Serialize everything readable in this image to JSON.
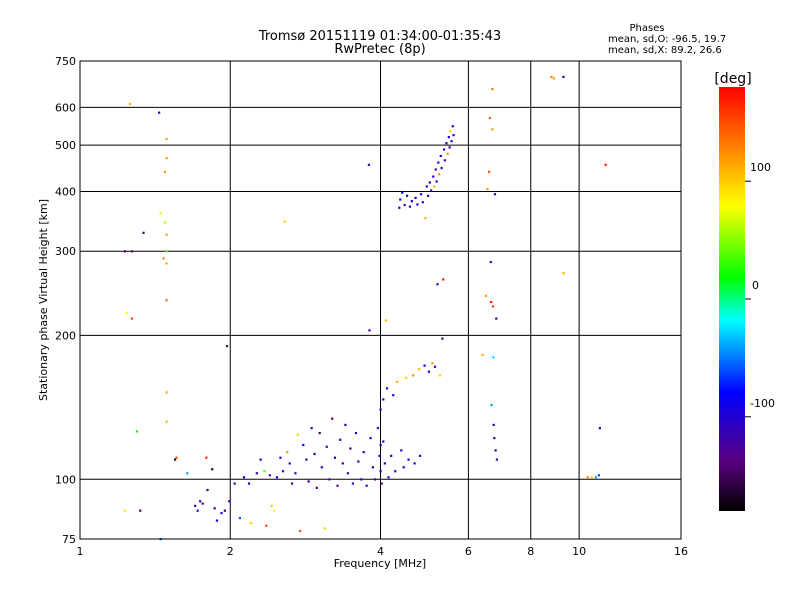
{
  "chart_data": {
    "type": "scatter",
    "title": "Tromsø 20151119 01:34:00-01:35:43",
    "subtitle": "RwPretec (8p)",
    "xlabel": "Frequency [MHz]",
    "ylabel": "Stationary phase Virtual Height [km]",
    "x_scale": "log",
    "y_scale": "log",
    "xlim": [
      1,
      16
    ],
    "ylim": [
      75,
      750
    ],
    "x_ticks": [
      1,
      2,
      4,
      6,
      8,
      10,
      16
    ],
    "y_ticks": [
      75,
      100,
      200,
      300,
      400,
      500,
      600,
      750
    ],
    "grid": true,
    "phase_header": "Phases",
    "phase_stats": [
      "mean, sd,O: -96.5, 19.7",
      "mean, sd,X: 89.2, 26.6"
    ],
    "colorbar": {
      "label": "[deg]",
      "range": [
        -180,
        180
      ],
      "ticks": [
        100,
        0,
        -100
      ],
      "colors": [
        "#000000",
        "#5a0080",
        "#0000ff",
        "#00ffff",
        "#00ff00",
        "#ffff00",
        "#ff8000",
        "#ff0000"
      ]
    },
    "points": [
      {
        "x": 1.26,
        "y": 610,
        "phase": 110
      },
      {
        "x": 1.44,
        "y": 585,
        "phase": -110
      },
      {
        "x": 1.49,
        "y": 515,
        "phase": 120
      },
      {
        "x": 1.49,
        "y": 470,
        "phase": 115
      },
      {
        "x": 1.48,
        "y": 440,
        "phase": 118
      },
      {
        "x": 1.45,
        "y": 360,
        "phase": 70
      },
      {
        "x": 1.48,
        "y": 345,
        "phase": 60
      },
      {
        "x": 1.34,
        "y": 328,
        "phase": -150
      },
      {
        "x": 1.49,
        "y": 325,
        "phase": 120
      },
      {
        "x": 1.49,
        "y": 300,
        "phase": 40
      },
      {
        "x": 1.47,
        "y": 290,
        "phase": 130
      },
      {
        "x": 1.49,
        "y": 283,
        "phase": 115
      },
      {
        "x": 1.23,
        "y": 300,
        "phase": -140
      },
      {
        "x": 1.27,
        "y": 300,
        "phase": -140
      },
      {
        "x": 1.49,
        "y": 237,
        "phase": 140
      },
      {
        "x": 1.24,
        "y": 223,
        "phase": 80
      },
      {
        "x": 1.27,
        "y": 217,
        "phase": 150
      },
      {
        "x": 1.49,
        "y": 152,
        "phase": 115
      },
      {
        "x": 1.49,
        "y": 132,
        "phase": 105
      },
      {
        "x": 1.3,
        "y": 126,
        "phase": 20
      },
      {
        "x": 1.55,
        "y": 110,
        "phase": -170
      },
      {
        "x": 1.56,
        "y": 111,
        "phase": 150
      },
      {
        "x": 1.64,
        "y": 103,
        "phase": -40
      },
      {
        "x": 1.23,
        "y": 86,
        "phase": 90
      },
      {
        "x": 1.32,
        "y": 86,
        "phase": -150
      },
      {
        "x": 1.45,
        "y": 75,
        "phase": -60
      },
      {
        "x": 1.79,
        "y": 111,
        "phase": 165
      },
      {
        "x": 1.84,
        "y": 105,
        "phase": -170
      },
      {
        "x": 1.97,
        "y": 190,
        "phase": -110
      },
      {
        "x": 1.7,
        "y": 88,
        "phase": -120
      },
      {
        "x": 1.72,
        "y": 86,
        "phase": -100
      },
      {
        "x": 1.74,
        "y": 90,
        "phase": -130
      },
      {
        "x": 1.76,
        "y": 89,
        "phase": -110
      },
      {
        "x": 1.8,
        "y": 95,
        "phase": -100
      },
      {
        "x": 1.86,
        "y": 87,
        "phase": -120
      },
      {
        "x": 1.88,
        "y": 82,
        "phase": -90
      },
      {
        "x": 1.92,
        "y": 85,
        "phase": -110
      },
      {
        "x": 1.95,
        "y": 86,
        "phase": -150
      },
      {
        "x": 1.99,
        "y": 90,
        "phase": -100
      },
      {
        "x": 2.04,
        "y": 98,
        "phase": -110
      },
      {
        "x": 2.09,
        "y": 83,
        "phase": -60
      },
      {
        "x": 2.13,
        "y": 101,
        "phase": -110
      },
      {
        "x": 2.18,
        "y": 98,
        "phase": -100
      },
      {
        "x": 2.2,
        "y": 81,
        "phase": 100
      },
      {
        "x": 2.26,
        "y": 103,
        "phase": -110
      },
      {
        "x": 2.3,
        "y": 110,
        "phase": -110
      },
      {
        "x": 2.34,
        "y": 104,
        "phase": 40
      },
      {
        "x": 2.36,
        "y": 80,
        "phase": 150
      },
      {
        "x": 2.4,
        "y": 102,
        "phase": -120
      },
      {
        "x": 2.42,
        "y": 88,
        "phase": 100
      },
      {
        "x": 2.45,
        "y": 86,
        "phase": 80
      },
      {
        "x": 2.48,
        "y": 101,
        "phase": -90
      },
      {
        "x": 2.52,
        "y": 111,
        "phase": -110
      },
      {
        "x": 2.55,
        "y": 104,
        "phase": -130
      },
      {
        "x": 2.57,
        "y": 346,
        "phase": 100
      },
      {
        "x": 2.6,
        "y": 114,
        "phase": 120
      },
      {
        "x": 2.63,
        "y": 108,
        "phase": -100
      },
      {
        "x": 2.66,
        "y": 98,
        "phase": -120
      },
      {
        "x": 2.7,
        "y": 103,
        "phase": -110
      },
      {
        "x": 2.73,
        "y": 124,
        "phase": 100
      },
      {
        "x": 2.76,
        "y": 78,
        "phase": 150
      },
      {
        "x": 2.8,
        "y": 118,
        "phase": -100
      },
      {
        "x": 2.84,
        "y": 110,
        "phase": -110
      },
      {
        "x": 2.87,
        "y": 99,
        "phase": -120
      },
      {
        "x": 2.91,
        "y": 128,
        "phase": -110
      },
      {
        "x": 2.95,
        "y": 113,
        "phase": -100
      },
      {
        "x": 2.98,
        "y": 96,
        "phase": -140
      },
      {
        "x": 3.02,
        "y": 125,
        "phase": -150
      },
      {
        "x": 3.05,
        "y": 106,
        "phase": -110
      },
      {
        "x": 3.09,
        "y": 79,
        "phase": 100
      },
      {
        "x": 3.12,
        "y": 117,
        "phase": -110
      },
      {
        "x": 3.16,
        "y": 100,
        "phase": -120
      },
      {
        "x": 3.2,
        "y": 134,
        "phase": -150
      },
      {
        "x": 3.24,
        "y": 111,
        "phase": -100
      },
      {
        "x": 3.28,
        "y": 97,
        "phase": -130
      },
      {
        "x": 3.32,
        "y": 121,
        "phase": -110
      },
      {
        "x": 3.36,
        "y": 108,
        "phase": -100
      },
      {
        "x": 3.4,
        "y": 130,
        "phase": -120
      },
      {
        "x": 3.44,
        "y": 103,
        "phase": -110
      },
      {
        "x": 3.48,
        "y": 116,
        "phase": -150
      },
      {
        "x": 3.52,
        "y": 98,
        "phase": -110
      },
      {
        "x": 3.57,
        "y": 125,
        "phase": -100
      },
      {
        "x": 3.61,
        "y": 109,
        "phase": -130
      },
      {
        "x": 3.66,
        "y": 100,
        "phase": -110
      },
      {
        "x": 3.7,
        "y": 114,
        "phase": -100
      },
      {
        "x": 3.75,
        "y": 97,
        "phase": -110
      },
      {
        "x": 3.79,
        "y": 455,
        "phase": -110
      },
      {
        "x": 3.8,
        "y": 205,
        "phase": -120
      },
      {
        "x": 3.82,
        "y": 122,
        "phase": -110
      },
      {
        "x": 3.86,
        "y": 106,
        "phase": -100
      },
      {
        "x": 3.9,
        "y": 100,
        "phase": -120
      },
      {
        "x": 3.95,
        "y": 128,
        "phase": -110
      },
      {
        "x": 3.98,
        "y": 112,
        "phase": -100
      },
      {
        "x": 4.0,
        "y": 140,
        "phase": -110
      },
      {
        "x": 4.0,
        "y": 118,
        "phase": -110
      },
      {
        "x": 4.0,
        "y": 104,
        "phase": -110
      },
      {
        "x": 4.02,
        "y": 98,
        "phase": -130
      },
      {
        "x": 4.05,
        "y": 147,
        "phase": -110
      },
      {
        "x": 4.05,
        "y": 120,
        "phase": -100
      },
      {
        "x": 4.08,
        "y": 108,
        "phase": -110
      },
      {
        "x": 4.1,
        "y": 215,
        "phase": 110
      },
      {
        "x": 4.12,
        "y": 155,
        "phase": -110
      },
      {
        "x": 4.15,
        "y": 101,
        "phase": -100
      },
      {
        "x": 4.2,
        "y": 112,
        "phase": -110
      },
      {
        "x": 4.24,
        "y": 150,
        "phase": -100
      },
      {
        "x": 4.28,
        "y": 104,
        "phase": -110
      },
      {
        "x": 4.32,
        "y": 160,
        "phase": 110
      },
      {
        "x": 4.36,
        "y": 370,
        "phase": -110
      },
      {
        "x": 4.38,
        "y": 385,
        "phase": -100
      },
      {
        "x": 4.4,
        "y": 115,
        "phase": -110
      },
      {
        "x": 4.42,
        "y": 398,
        "phase": -80
      },
      {
        "x": 4.45,
        "y": 106,
        "phase": -110
      },
      {
        "x": 4.47,
        "y": 375,
        "phase": -110
      },
      {
        "x": 4.5,
        "y": 163,
        "phase": 100
      },
      {
        "x": 4.52,
        "y": 392,
        "phase": -100
      },
      {
        "x": 4.55,
        "y": 110,
        "phase": -100
      },
      {
        "x": 4.58,
        "y": 372,
        "phase": -110
      },
      {
        "x": 4.62,
        "y": 382,
        "phase": -100
      },
      {
        "x": 4.65,
        "y": 165,
        "phase": 120
      },
      {
        "x": 4.68,
        "y": 108,
        "phase": -110
      },
      {
        "x": 4.7,
        "y": 388,
        "phase": -100
      },
      {
        "x": 4.74,
        "y": 376,
        "phase": -110
      },
      {
        "x": 4.78,
        "y": 170,
        "phase": 110
      },
      {
        "x": 4.8,
        "y": 112,
        "phase": -110
      },
      {
        "x": 4.82,
        "y": 395,
        "phase": -100
      },
      {
        "x": 4.86,
        "y": 380,
        "phase": -110
      },
      {
        "x": 4.9,
        "y": 173,
        "phase": -100
      },
      {
        "x": 4.92,
        "y": 352,
        "phase": 110
      },
      {
        "x": 4.95,
        "y": 410,
        "phase": -100
      },
      {
        "x": 4.98,
        "y": 392,
        "phase": -110
      },
      {
        "x": 5.0,
        "y": 168,
        "phase": -110
      },
      {
        "x": 5.02,
        "y": 418,
        "phase": -100
      },
      {
        "x": 5.05,
        "y": 402,
        "phase": -110
      },
      {
        "x": 5.08,
        "y": 175,
        "phase": 120
      },
      {
        "x": 5.1,
        "y": 430,
        "phase": -100
      },
      {
        "x": 5.12,
        "y": 410,
        "phase": 110
      },
      {
        "x": 5.14,
        "y": 172,
        "phase": -110
      },
      {
        "x": 5.16,
        "y": 445,
        "phase": -100
      },
      {
        "x": 5.18,
        "y": 420,
        "phase": -110
      },
      {
        "x": 5.2,
        "y": 256,
        "phase": -110
      },
      {
        "x": 5.22,
        "y": 460,
        "phase": -100
      },
      {
        "x": 5.24,
        "y": 435,
        "phase": 120
      },
      {
        "x": 5.26,
        "y": 165,
        "phase": 100
      },
      {
        "x": 5.28,
        "y": 475,
        "phase": -100
      },
      {
        "x": 5.3,
        "y": 448,
        "phase": -110
      },
      {
        "x": 5.32,
        "y": 197,
        "phase": -110
      },
      {
        "x": 5.34,
        "y": 262,
        "phase": 170
      },
      {
        "x": 5.36,
        "y": 490,
        "phase": -100
      },
      {
        "x": 5.38,
        "y": 465,
        "phase": -110
      },
      {
        "x": 5.42,
        "y": 505,
        "phase": -100
      },
      {
        "x": 5.45,
        "y": 480,
        "phase": 120
      },
      {
        "x": 5.48,
        "y": 520,
        "phase": -100
      },
      {
        "x": 5.5,
        "y": 495,
        "phase": -110
      },
      {
        "x": 5.52,
        "y": 535,
        "phase": 100
      },
      {
        "x": 5.55,
        "y": 510,
        "phase": -100
      },
      {
        "x": 5.58,
        "y": 548,
        "phase": -110
      },
      {
        "x": 5.6,
        "y": 525,
        "phase": -100
      },
      {
        "x": 6.4,
        "y": 182,
        "phase": 110
      },
      {
        "x": 6.5,
        "y": 242,
        "phase": 120
      },
      {
        "x": 6.55,
        "y": 405,
        "phase": 120
      },
      {
        "x": 6.6,
        "y": 440,
        "phase": 150
      },
      {
        "x": 6.62,
        "y": 570,
        "phase": 140
      },
      {
        "x": 6.65,
        "y": 285,
        "phase": -110
      },
      {
        "x": 6.66,
        "y": 235,
        "phase": 170
      },
      {
        "x": 6.67,
        "y": 143,
        "phase": -40
      },
      {
        "x": 6.7,
        "y": 655,
        "phase": 140
      },
      {
        "x": 6.7,
        "y": 540,
        "phase": 120
      },
      {
        "x": 6.72,
        "y": 230,
        "phase": 160
      },
      {
        "x": 6.73,
        "y": 180,
        "phase": -30
      },
      {
        "x": 6.74,
        "y": 130,
        "phase": -110
      },
      {
        "x": 6.76,
        "y": 122,
        "phase": -110
      },
      {
        "x": 6.78,
        "y": 395,
        "phase": -110
      },
      {
        "x": 6.8,
        "y": 115,
        "phase": -110
      },
      {
        "x": 6.82,
        "y": 217,
        "phase": -150
      },
      {
        "x": 6.84,
        "y": 110,
        "phase": -110
      },
      {
        "x": 8.8,
        "y": 695,
        "phase": 130
      },
      {
        "x": 8.9,
        "y": 690,
        "phase": 120
      },
      {
        "x": 9.3,
        "y": 695,
        "phase": -110
      },
      {
        "x": 9.3,
        "y": 270,
        "phase": 110
      },
      {
        "x": 10.4,
        "y": 101,
        "phase": 130
      },
      {
        "x": 10.6,
        "y": 101,
        "phase": 90
      },
      {
        "x": 10.8,
        "y": 101,
        "phase": -40
      },
      {
        "x": 10.95,
        "y": 102,
        "phase": -60
      },
      {
        "x": 11.0,
        "y": 128,
        "phase": -110
      },
      {
        "x": 11.3,
        "y": 455,
        "phase": 170
      }
    ]
  }
}
